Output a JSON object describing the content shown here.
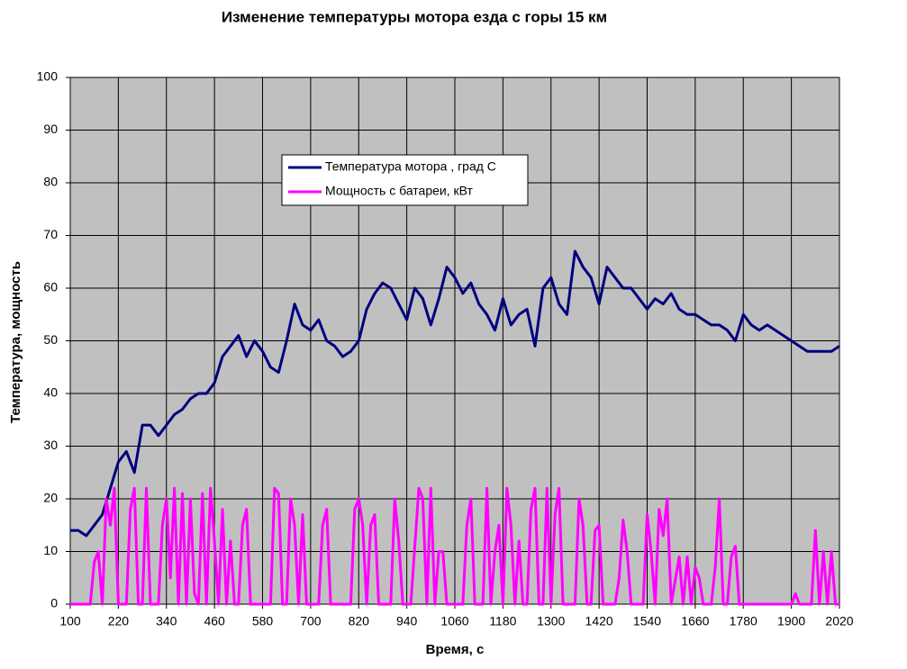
{
  "chart_data": {
    "type": "line",
    "title": "Изменение температуры мотора езда с горы 15 км",
    "xlabel": "Время,  с",
    "ylabel": "Температура,  мощность",
    "xlim": [
      100,
      2020
    ],
    "xticks": [
      100,
      220,
      340,
      460,
      580,
      700,
      820,
      940,
      1060,
      1180,
      1300,
      1420,
      1540,
      1660,
      1780,
      1900,
      2020
    ],
    "ylim": [
      0,
      100
    ],
    "yticks": [
      0,
      10,
      20,
      30,
      40,
      50,
      60,
      70,
      80,
      90,
      100
    ],
    "grid": true,
    "background": "#c0c0c0",
    "series": [
      {
        "name": "Температура  мотора  , град С",
        "color": "#000080",
        "x": [
          100,
          120,
          140,
          160,
          180,
          200,
          220,
          240,
          260,
          280,
          300,
          320,
          340,
          360,
          380,
          400,
          420,
          440,
          460,
          480,
          500,
          520,
          540,
          560,
          580,
          600,
          620,
          640,
          660,
          680,
          700,
          720,
          740,
          760,
          780,
          800,
          820,
          840,
          860,
          880,
          900,
          920,
          940,
          960,
          980,
          1000,
          1020,
          1040,
          1060,
          1080,
          1100,
          1120,
          1140,
          1160,
          1180,
          1200,
          1220,
          1240,
          1260,
          1280,
          1300,
          1320,
          1340,
          1360,
          1380,
          1400,
          1420,
          1440,
          1460,
          1480,
          1500,
          1520,
          1540,
          1560,
          1580,
          1600,
          1620,
          1640,
          1660,
          1680,
          1700,
          1720,
          1740,
          1760,
          1780,
          1800,
          1820,
          1840,
          1860,
          1880,
          1900,
          1920,
          1940,
          1960,
          1980,
          2000,
          2020
        ],
        "values": [
          14,
          14,
          13,
          15,
          17,
          22,
          27,
          29,
          25,
          34,
          34,
          32,
          34,
          36,
          37,
          39,
          40,
          40,
          42,
          47,
          49,
          51,
          47,
          50,
          48,
          45,
          44,
          50,
          57,
          53,
          52,
          54,
          50,
          49,
          47,
          48,
          50,
          56,
          59,
          61,
          60,
          57,
          54,
          60,
          58,
          53,
          58,
          64,
          62,
          59,
          61,
          57,
          55,
          52,
          58,
          53,
          55,
          56,
          49,
          60,
          62,
          57,
          55,
          67,
          64,
          62,
          57,
          64,
          62,
          60,
          60,
          58,
          56,
          58,
          57,
          59,
          56,
          55,
          55,
          54,
          53,
          53,
          52,
          50,
          55,
          53,
          52,
          53,
          52,
          51,
          50,
          49,
          48,
          48,
          48,
          48,
          49
        ]
      },
      {
        "name": "Мощность  с батареи, кВт",
        "color": "#ff00ff",
        "x": [
          100,
          150,
          160,
          170,
          180,
          190,
          200,
          210,
          220,
          240,
          250,
          260,
          270,
          280,
          290,
          300,
          320,
          330,
          340,
          350,
          360,
          370,
          380,
          390,
          400,
          410,
          420,
          430,
          440,
          450,
          460,
          470,
          480,
          490,
          500,
          510,
          520,
          530,
          540,
          550,
          560,
          600,
          610,
          620,
          630,
          640,
          650,
          660,
          670,
          680,
          690,
          720,
          730,
          740,
          750,
          800,
          810,
          820,
          830,
          840,
          850,
          860,
          870,
          900,
          910,
          920,
          930,
          950,
          970,
          980,
          990,
          1000,
          1010,
          1020,
          1030,
          1040,
          1080,
          1090,
          1100,
          1110,
          1130,
          1140,
          1150,
          1160,
          1170,
          1180,
          1190,
          1200,
          1210,
          1220,
          1230,
          1240,
          1250,
          1260,
          1270,
          1280,
          1290,
          1300,
          1310,
          1320,
          1330,
          1360,
          1370,
          1380,
          1390,
          1400,
          1410,
          1420,
          1430,
          1460,
          1470,
          1480,
          1490,
          1500,
          1530,
          1540,
          1550,
          1560,
          1570,
          1580,
          1590,
          1600,
          1620,
          1630,
          1640,
          1650,
          1660,
          1670,
          1680,
          1700,
          1710,
          1720,
          1730,
          1740,
          1750,
          1760,
          1770,
          1900,
          1910,
          1920,
          1950,
          1960,
          1970,
          1980,
          1990,
          2000,
          2010,
          2020
        ],
        "values": [
          0,
          0,
          8,
          10,
          0,
          20,
          15,
          22,
          0,
          0,
          18,
          22,
          0,
          0,
          22,
          0,
          0,
          15,
          20,
          5,
          22,
          0,
          21,
          0,
          20,
          2,
          0,
          21,
          0,
          22,
          12,
          0,
          18,
          0,
          12,
          0,
          0,
          15,
          18,
          0,
          0,
          0,
          22,
          21,
          0,
          0,
          20,
          15,
          0,
          17,
          0,
          0,
          15,
          18,
          0,
          0,
          18,
          20,
          15,
          0,
          15,
          17,
          0,
          0,
          20,
          12,
          0,
          0,
          22,
          20,
          0,
          22,
          0,
          10,
          10,
          0,
          0,
          15,
          20,
          0,
          0,
          22,
          0,
          10,
          15,
          0,
          22,
          15,
          0,
          12,
          0,
          0,
          18,
          22,
          0,
          0,
          22,
          0,
          17,
          22,
          0,
          0,
          20,
          15,
          0,
          0,
          14,
          15,
          0,
          0,
          5,
          16,
          10,
          0,
          0,
          17,
          10,
          0,
          18,
          13,
          20,
          0,
          9,
          0,
          9,
          0,
          7,
          5,
          0,
          0,
          7,
          20,
          0,
          0,
          9,
          11,
          0,
          0,
          2,
          0,
          0,
          14,
          0,
          10,
          0,
          10,
          0,
          0
        ]
      }
    ]
  }
}
